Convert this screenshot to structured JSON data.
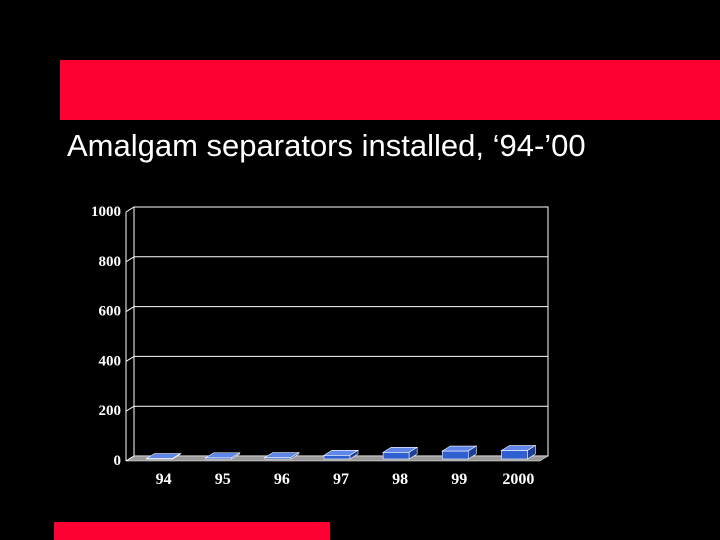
{
  "slide": {
    "title": "Amalgam separators installed, ‘94-’00",
    "accent_color": "#ff0033",
    "background_color": "#000000"
  },
  "chart_data": {
    "type": "bar",
    "title": "",
    "xlabel": "",
    "ylabel": "",
    "categories": [
      "94",
      "95",
      "96",
      "97",
      "98",
      "99",
      "2000"
    ],
    "values": [
      2,
      5,
      6,
      15,
      27,
      32,
      34
    ],
    "ylim": [
      0,
      1000
    ],
    "yticks": [
      0,
      200,
      400,
      600,
      800,
      1000
    ],
    "grid": true,
    "legend": "none",
    "bar_color": "#2f5fd0",
    "bar_style": "3d"
  }
}
